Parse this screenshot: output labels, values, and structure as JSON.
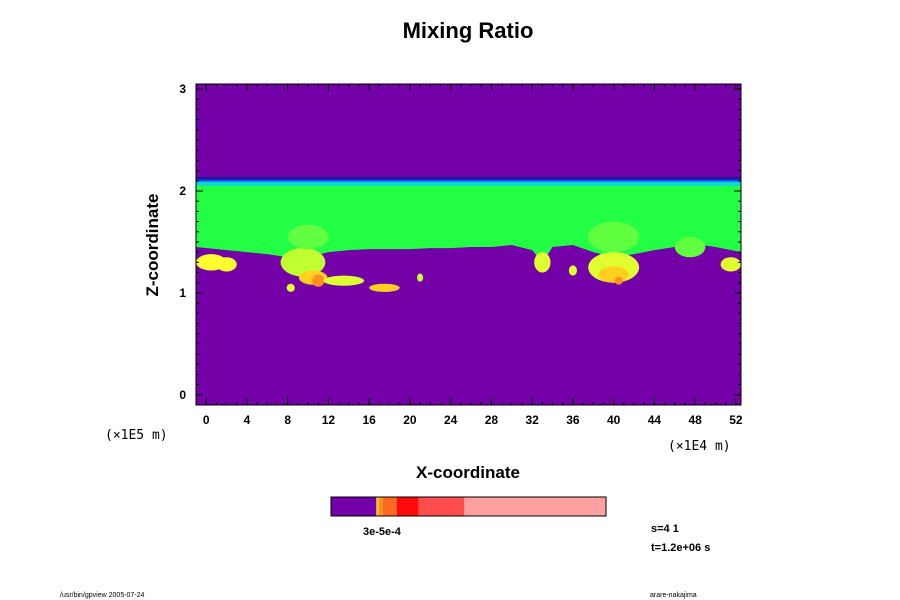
{
  "chart_data": {
    "type": "heatmap",
    "title": "Mixing Ratio",
    "xlabel": "X-coordinate",
    "ylabel": "Z-coordinate",
    "x_scale_label": "(×1E4 m)",
    "y_scale_label": "(×1E5 m)",
    "xlim": [
      -1,
      52.5
    ],
    "ylim": [
      -0.1,
      3.05
    ],
    "x_ticks": [
      0,
      4,
      8,
      12,
      16,
      20,
      24,
      28,
      32,
      36,
      40,
      44,
      48,
      52
    ],
    "y_ticks": [
      0,
      1,
      2,
      3
    ],
    "layers": [
      {
        "name": "background",
        "color": "#7400a8",
        "x0": -1,
        "x1": 52.5,
        "z0": -0.1,
        "z1": 3.05
      },
      {
        "name": "dark band",
        "color": "#2a10a0",
        "x0": -1,
        "x1": 52.5,
        "z0": 2.1,
        "z1": 2.14
      },
      {
        "name": "blue band",
        "color": "#1060ff",
        "x0": -1,
        "x1": 52.5,
        "z0": 2.08,
        "z1": 2.11
      },
      {
        "name": "cyan band",
        "color": "#10d8d0",
        "x0": -1,
        "x1": 52.5,
        "z0": 2.04,
        "z1": 2.09
      }
    ],
    "green_layer": {
      "color": "#22ff44",
      "top": 2.05,
      "bottom_profile": [
        [
          -1,
          1.45
        ],
        [
          2,
          1.42
        ],
        [
          4,
          1.4
        ],
        [
          6,
          1.38
        ],
        [
          8,
          1.35
        ],
        [
          10,
          1.35
        ],
        [
          12,
          1.4
        ],
        [
          14,
          1.42
        ],
        [
          16,
          1.43
        ],
        [
          18,
          1.43
        ],
        [
          20,
          1.43
        ],
        [
          22,
          1.44
        ],
        [
          24,
          1.44
        ],
        [
          26,
          1.45
        ],
        [
          28,
          1.45
        ],
        [
          30,
          1.47
        ],
        [
          32,
          1.42
        ],
        [
          33,
          1.3
        ],
        [
          34,
          1.45
        ],
        [
          36,
          1.47
        ],
        [
          38,
          1.4
        ],
        [
          40,
          1.35
        ],
        [
          42,
          1.38
        ],
        [
          44,
          1.42
        ],
        [
          46,
          1.45
        ],
        [
          48,
          1.48
        ],
        [
          50,
          1.45
        ],
        [
          52.5,
          1.4
        ]
      ]
    },
    "blobs": [
      {
        "x": 0.5,
        "z": 1.3,
        "rx": 1.5,
        "rz": 0.08,
        "color": "#ffff30"
      },
      {
        "x": 2.0,
        "z": 1.28,
        "rx": 1.0,
        "rz": 0.07,
        "color": "#ffff30"
      },
      {
        "x": 9.5,
        "z": 1.3,
        "rx": 2.2,
        "rz": 0.14,
        "color": "#c0ff30"
      },
      {
        "x": 10.5,
        "z": 1.15,
        "rx": 1.4,
        "rz": 0.07,
        "color": "#ffd020"
      },
      {
        "x": 11.0,
        "z": 1.12,
        "rx": 0.6,
        "rz": 0.06,
        "color": "#ff9020"
      },
      {
        "x": 13.5,
        "z": 1.12,
        "rx": 2.0,
        "rz": 0.05,
        "color": "#e0ff30"
      },
      {
        "x": 17.5,
        "z": 1.05,
        "rx": 1.5,
        "rz": 0.04,
        "color": "#ffd020"
      },
      {
        "x": 8.3,
        "z": 1.05,
        "rx": 0.4,
        "rz": 0.04,
        "color": "#e0ff30"
      },
      {
        "x": 21.0,
        "z": 1.15,
        "rx": 0.3,
        "rz": 0.04,
        "color": "#c0ff30"
      },
      {
        "x": 33.0,
        "z": 1.3,
        "rx": 0.8,
        "rz": 0.1,
        "color": "#e0ff30"
      },
      {
        "x": 40.0,
        "z": 1.25,
        "rx": 2.5,
        "rz": 0.15,
        "color": "#e0ff30"
      },
      {
        "x": 40.0,
        "z": 1.18,
        "rx": 1.5,
        "rz": 0.08,
        "color": "#ffd020"
      },
      {
        "x": 40.5,
        "z": 1.12,
        "rx": 0.4,
        "rz": 0.04,
        "color": "#ff9020"
      },
      {
        "x": 36.0,
        "z": 1.22,
        "rx": 0.4,
        "rz": 0.05,
        "color": "#e0ff30"
      },
      {
        "x": 51.5,
        "z": 1.28,
        "rx": 1.0,
        "rz": 0.07,
        "color": "#e0ff30"
      },
      {
        "x": 10.0,
        "z": 1.55,
        "rx": 2.0,
        "rz": 0.12,
        "color": "#60ff40"
      },
      {
        "x": 40.0,
        "z": 1.55,
        "rx": 2.5,
        "rz": 0.15,
        "color": "#60ff40"
      },
      {
        "x": 47.5,
        "z": 1.45,
        "rx": 1.5,
        "rz": 0.1,
        "color": "#60ff40"
      }
    ],
    "colorbar": {
      "segments": [
        {
          "color": "#7400a8",
          "width": 0.165
        },
        {
          "color": "#ffd020",
          "width": 0.008
        },
        {
          "color": "#ff9020",
          "width": 0.016
        },
        {
          "color": "#ff6a20",
          "width": 0.05
        },
        {
          "color": "#ff0a0a",
          "width": 0.08
        },
        {
          "color": "#ff4c4c",
          "width": 0.166
        },
        {
          "color": "#ffa0a0",
          "width": 0.515
        }
      ],
      "label": "3e-5e-4"
    }
  },
  "footer": {
    "annotation_s": "s=4 1",
    "annotation_t": "t=1.2e+06 s",
    "left_path": "/usr/bin/gpview 2005-07-24",
    "right_signature": "arare-nakajima"
  }
}
